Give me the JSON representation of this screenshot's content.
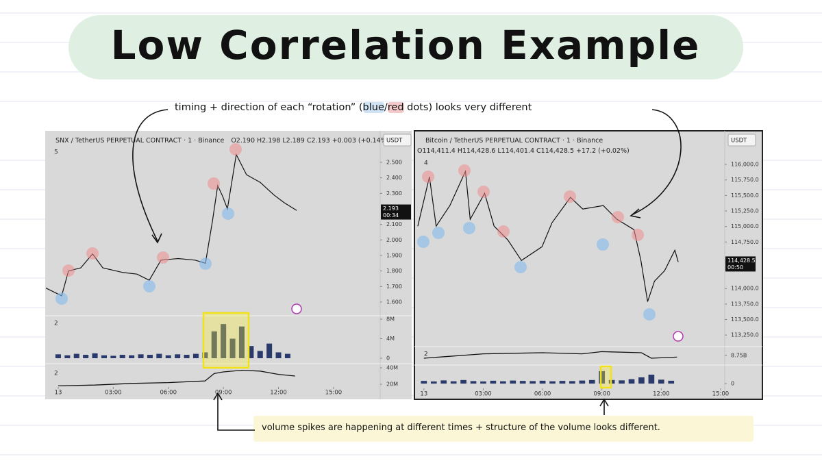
{
  "title": "Low Correlation Example",
  "note_top": [
    "timing + direction of each “rotation” (",
    "blue",
    "/",
    "red",
    " dots) looks very different"
  ],
  "note_bottom": "volume spikes are happening at different times + structure of the volume looks different.",
  "chart_data": [
    {
      "type": "line",
      "title": "SNX / TetherUS PERPETUAL CONTRACT · 1 · Binance",
      "ohlc": "O2.190 H2.198 L2.189 C2.193 +0.003 (+0.14%)",
      "currency": "USDT",
      "pane_labels": [
        "5",
        "2",
        "2"
      ],
      "last_price": {
        "value": 2.193,
        "label": "2.193"
      },
      "countdown": "00:34",
      "color": "#111111",
      "x": [
        -0.67,
        0.19,
        0.56,
        1.23,
        1.87,
        2.43,
        3.54,
        4.29,
        4.96,
        5.6,
        6.53,
        7.46,
        8.02,
        8.4,
        8.69,
        8.96,
        9.22,
        9.7,
        10.26,
        11.01,
        11.75,
        12.31,
        12.99
      ],
      "values": [
        1.69,
        1.64,
        1.8,
        1.82,
        1.91,
        1.82,
        1.79,
        1.78,
        1.74,
        1.87,
        1.88,
        1.87,
        1.85,
        2.12,
        2.35,
        2.28,
        2.2,
        2.55,
        2.42,
        2.37,
        2.29,
        2.24,
        2.19
      ],
      "xlim": [
        -0.67,
        17.54
      ],
      "xticks": [
        {
          "value": 0,
          "label": "13"
        },
        {
          "value": 3,
          "label": "03:00"
        },
        {
          "value": 6,
          "label": "06:00"
        },
        {
          "value": 9,
          "label": "09:00"
        },
        {
          "value": 12,
          "label": "12:00"
        },
        {
          "value": 15,
          "label": "15:00"
        }
      ],
      "ylim": [
        1.516,
        2.694
      ],
      "yticks": [
        {
          "value": 1.6,
          "label": "1.600"
        },
        {
          "value": 1.7,
          "label": "1.700"
        },
        {
          "value": 1.8,
          "label": "1.800"
        },
        {
          "value": 1.9,
          "label": "1.900"
        },
        {
          "value": 2.0,
          "label": "2.000"
        },
        {
          "value": 2.1,
          "label": "2.100"
        },
        {
          "value": 2.3,
          "label": "2.300"
        },
        {
          "value": 2.4,
          "label": "2.400"
        },
        {
          "value": 2.5,
          "label": "2.500"
        }
      ],
      "volume": {
        "color": "#2a3a6a",
        "x": [
          0,
          0.5,
          1,
          1.5,
          2,
          2.5,
          3,
          3.5,
          4,
          4.5,
          5,
          5.5,
          6,
          6.5,
          7,
          7.5,
          8,
          8.5,
          9,
          9.5,
          10,
          10.5,
          11,
          11.5,
          12,
          12.5
        ],
        "values": [
          800000,
          600000,
          900000,
          700000,
          1000000,
          600000,
          500000,
          700000,
          600000,
          800000,
          700000,
          900000,
          600000,
          800000,
          700000,
          900000,
          1200000,
          5500000,
          7000000,
          4000000,
          6500000,
          2500000,
          1500000,
          3000000,
          1200000,
          900000
        ],
        "ylim": [
          -700000,
          8560000
        ],
        "yticks": [
          {
            "value": 0,
            "label": "0"
          },
          {
            "value": 4000000,
            "label": "4M"
          },
          {
            "value": 8000000,
            "label": "8M"
          }
        ]
      },
      "indicator": {
        "color": "#111111",
        "x": [
          0,
          2,
          4,
          6,
          8,
          8.5,
          9,
          10,
          11,
          12,
          12.9
        ],
        "values": [
          18000000,
          19000000,
          21000000,
          22000000,
          24000000,
          33000000,
          35000000,
          37000000,
          36000000,
          32000000,
          30000000
        ],
        "ylim": [
          16700000,
          44200000
        ],
        "yticks": [
          {
            "value": 20000000,
            "label": "20M"
          },
          {
            "value": 40000000,
            "label": "40M"
          }
        ]
      }
    },
    {
      "type": "line",
      "title": "Bitcoin / TetherUS PERPETUAL CONTRACT · 1 · Binance",
      "ohlc": "O114,411.4 H114,428.6 L114,401.4 C114,428.5 +17.2 (+0.02%)",
      "currency": "USDT",
      "pane_labels": [
        "4",
        "2"
      ],
      "last_price": {
        "value": 114428.5,
        "label": "114,428.5"
      },
      "countdown": "00:50",
      "color": "#111111",
      "x": [
        -0.31,
        0.28,
        0.62,
        1.31,
        2.1,
        2.34,
        3.07,
        3.55,
        4.24,
        4.93,
        5.97,
        6.48,
        7.41,
        8.03,
        9.07,
        9.76,
        10.62,
        10.97,
        11.31,
        11.66,
        12.17,
        12.69,
        12.86
      ],
      "values": [
        115005,
        115801,
        115005,
        115336,
        115889,
        115115,
        115535,
        115005,
        114783,
        114452,
        114673,
        115060,
        115469,
        115281,
        115336,
        115115,
        114949,
        114452,
        113788,
        114120,
        114286,
        114618,
        114428.5
      ],
      "xlim": [
        -0.41,
        15.21
      ],
      "xticks": [
        {
          "value": 0,
          "label": "13"
        },
        {
          "value": 3,
          "label": "03:00"
        },
        {
          "value": 6,
          "label": "06:00"
        },
        {
          "value": 9,
          "label": "09:00"
        },
        {
          "value": 12,
          "label": "12:00"
        },
        {
          "value": 15,
          "label": "15:00"
        }
      ],
      "ylim": [
        113075,
        116520
      ],
      "yticks": [
        {
          "value": 113250,
          "label": "113,250.0"
        },
        {
          "value": 113500,
          "label": "113,500.0"
        },
        {
          "value": 113750,
          "label": "113,750.0"
        },
        {
          "value": 114000,
          "label": "114,000.0"
        },
        {
          "value": 114750,
          "label": "114,750.0"
        },
        {
          "value": 115000,
          "label": "115,000.0"
        },
        {
          "value": 115250,
          "label": "115,250.0"
        },
        {
          "value": 115500,
          "label": "115,500.0"
        },
        {
          "value": 115750,
          "label": "115,750.0"
        },
        {
          "value": 116000,
          "label": "116,000.0"
        }
      ],
      "indicator": {
        "color": "#111111",
        "x": [
          0,
          3,
          6,
          8,
          9,
          11,
          11.5,
          12.8
        ],
        "values": [
          8700000000,
          8780000000,
          8800000000,
          8780000000,
          8820000000,
          8800000000,
          8700000000,
          8720000000
        ],
        "ylim": [
          8600000000,
          8900000000
        ],
        "yticks": [
          {
            "value": 8750000000,
            "label": "8.75B"
          }
        ]
      },
      "volume": {
        "color": "#2a3a6a",
        "x": [
          0,
          0.5,
          1,
          1.5,
          2,
          2.5,
          3,
          3.5,
          4,
          4.5,
          5,
          5.5,
          6,
          6.5,
          7,
          7.5,
          8,
          8.5,
          9,
          9.5,
          10,
          10.5,
          11,
          11.5,
          12,
          12.5
        ],
        "values": [
          150,
          120,
          180,
          130,
          200,
          140,
          120,
          160,
          130,
          170,
          150,
          140,
          160,
          130,
          150,
          140,
          170,
          200,
          700,
          200,
          180,
          250,
          350,
          500,
          220,
          160
        ],
        "ylim": [
          -190,
          1000
        ],
        "yticks": [
          0
        ]
      }
    }
  ]
}
